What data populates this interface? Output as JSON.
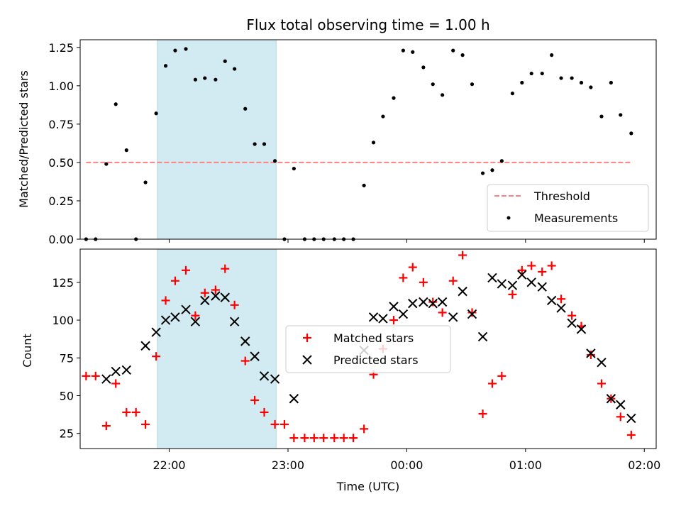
{
  "chart_data": [
    {
      "type": "scatter",
      "title": "Flux total observing time = 1.00 h",
      "ylabel": "Matched/Predicted stars",
      "xlabel": "",
      "x_unit": "hours relative to 00:00 UTC",
      "xlim": [
        -2.75,
        2.1
      ],
      "ylim": [
        0,
        1.3
      ],
      "yticks": [
        0.0,
        0.25,
        0.5,
        0.75,
        1.0,
        1.25
      ],
      "ytick_labels": [
        "0.00",
        "0.25",
        "0.50",
        "0.75",
        "1.00",
        "1.25"
      ],
      "shaded_interval": [
        -2.1,
        -1.1
      ],
      "shade_color": "#add8e6",
      "grid": false,
      "legend_position": "lower right",
      "threshold": {
        "name": "Threshold",
        "value": 0.5,
        "x_range": [
          -2.7,
          1.9
        ],
        "color": "#ff8080",
        "style": "dashed"
      },
      "series": [
        {
          "name": "Measurements",
          "marker": "dot",
          "color": "#000000",
          "points": [
            [
              -2.7,
              0.0
            ],
            [
              -2.62,
              0.0
            ],
            [
              -2.53,
              0.49
            ],
            [
              -2.45,
              0.88
            ],
            [
              -2.36,
              0.58
            ],
            [
              -2.28,
              0.0
            ],
            [
              -2.2,
              0.37
            ],
            [
              -2.11,
              0.82
            ],
            [
              -2.03,
              1.13
            ],
            [
              -1.95,
              1.23
            ],
            [
              -1.86,
              1.24
            ],
            [
              -1.78,
              1.04
            ],
            [
              -1.7,
              1.05
            ],
            [
              -1.61,
              1.04
            ],
            [
              -1.53,
              1.16
            ],
            [
              -1.45,
              1.11
            ],
            [
              -1.36,
              0.85
            ],
            [
              -1.28,
              0.62
            ],
            [
              -1.2,
              0.62
            ],
            [
              -1.11,
              0.51
            ],
            [
              -1.03,
              0.0
            ],
            [
              -0.95,
              0.46
            ],
            [
              -0.86,
              0.0
            ],
            [
              -0.78,
              0.0
            ],
            [
              -0.7,
              0.0
            ],
            [
              -0.61,
              0.0
            ],
            [
              -0.53,
              0.0
            ],
            [
              -0.45,
              0.0
            ],
            [
              -0.36,
              0.35
            ],
            [
              -0.28,
              0.63
            ],
            [
              -0.2,
              0.8
            ],
            [
              -0.11,
              0.92
            ],
            [
              -0.03,
              1.23
            ],
            [
              0.05,
              1.22
            ],
            [
              0.14,
              1.12
            ],
            [
              0.22,
              1.01
            ],
            [
              0.3,
              0.94
            ],
            [
              0.39,
              1.23
            ],
            [
              0.47,
              1.2
            ],
            [
              0.55,
              1.01
            ],
            [
              0.64,
              0.43
            ],
            [
              0.72,
              0.45
            ],
            [
              0.8,
              0.51
            ],
            [
              0.89,
              0.95
            ],
            [
              0.97,
              1.02
            ],
            [
              1.05,
              1.08
            ],
            [
              1.14,
              1.08
            ],
            [
              1.22,
              1.2
            ],
            [
              1.3,
              1.05
            ],
            [
              1.39,
              1.05
            ],
            [
              1.47,
              1.02
            ],
            [
              1.55,
              0.99
            ],
            [
              1.64,
              0.8
            ],
            [
              1.72,
              1.02
            ],
            [
              1.8,
              0.81
            ],
            [
              1.89,
              0.69
            ]
          ]
        }
      ]
    },
    {
      "type": "scatter",
      "title": "",
      "xlabel": "Time (UTC)",
      "ylabel": "Count",
      "x_unit": "hours relative to 00:00 UTC",
      "xlim": [
        -2.75,
        2.1
      ],
      "ylim": [
        15,
        147
      ],
      "xticks": [
        -2,
        -1,
        0,
        1,
        2
      ],
      "xtick_labels": [
        "22:00",
        "23:00",
        "00:00",
        "01:00",
        "02:00"
      ],
      "yticks": [
        25,
        50,
        75,
        100,
        125
      ],
      "ytick_labels": [
        "25",
        "50",
        "75",
        "100",
        "125"
      ],
      "shaded_interval": [
        -2.1,
        -1.1
      ],
      "shade_color": "#add8e6",
      "grid": false,
      "legend_position": "center",
      "series": [
        {
          "name": "Matched stars",
          "marker": "plus",
          "color": "#ff0000",
          "points": [
            [
              -2.7,
              63
            ],
            [
              -2.62,
              63
            ],
            [
              -2.53,
              30
            ],
            [
              -2.45,
              58
            ],
            [
              -2.36,
              39
            ],
            [
              -2.28,
              39
            ],
            [
              -2.2,
              31
            ],
            [
              -2.11,
              76
            ],
            [
              -2.03,
              113
            ],
            [
              -1.95,
              126
            ],
            [
              -1.86,
              133
            ],
            [
              -1.78,
              103
            ],
            [
              -1.7,
              118
            ],
            [
              -1.61,
              120
            ],
            [
              -1.53,
              134
            ],
            [
              -1.45,
              110
            ],
            [
              -1.36,
              73
            ],
            [
              -1.28,
              47
            ],
            [
              -1.2,
              39
            ],
            [
              -1.11,
              31
            ],
            [
              -1.03,
              31
            ],
            [
              -0.95,
              22
            ],
            [
              -0.86,
              22
            ],
            [
              -0.78,
              22
            ],
            [
              -0.7,
              22
            ],
            [
              -0.61,
              22
            ],
            [
              -0.53,
              22
            ],
            [
              -0.45,
              22
            ],
            [
              -0.36,
              28
            ],
            [
              -0.28,
              64
            ],
            [
              -0.2,
              81
            ],
            [
              -0.11,
              100
            ],
            [
              -0.03,
              128
            ],
            [
              0.05,
              135
            ],
            [
              0.14,
              125
            ],
            [
              0.22,
              112
            ],
            [
              0.3,
              105
            ],
            [
              0.39,
              126
            ],
            [
              0.47,
              143
            ],
            [
              0.55,
              105
            ],
            [
              0.64,
              38
            ],
            [
              0.72,
              58
            ],
            [
              0.8,
              63
            ],
            [
              0.89,
              117
            ],
            [
              0.97,
              133
            ],
            [
              1.05,
              136
            ],
            [
              1.14,
              132
            ],
            [
              1.22,
              136
            ],
            [
              1.3,
              114
            ],
            [
              1.39,
              103
            ],
            [
              1.47,
              96
            ],
            [
              1.55,
              77
            ],
            [
              1.64,
              58
            ],
            [
              1.72,
              48
            ],
            [
              1.8,
              36
            ],
            [
              1.89,
              24
            ]
          ]
        },
        {
          "name": "Predicted stars",
          "marker": "x",
          "color": "#000000",
          "points": [
            [
              -2.53,
              61
            ],
            [
              -2.45,
              66
            ],
            [
              -2.36,
              67
            ],
            [
              -2.2,
              83
            ],
            [
              -2.11,
              92
            ],
            [
              -2.03,
              100
            ],
            [
              -1.95,
              102
            ],
            [
              -1.86,
              107
            ],
            [
              -1.78,
              99
            ],
            [
              -1.7,
              113
            ],
            [
              -1.61,
              116
            ],
            [
              -1.53,
              115
            ],
            [
              -1.45,
              99
            ],
            [
              -1.36,
              86
            ],
            [
              -1.28,
              76
            ],
            [
              -1.2,
              63
            ],
            [
              -1.11,
              61
            ],
            [
              -0.95,
              48
            ],
            [
              -0.36,
              80
            ],
            [
              -0.28,
              102
            ],
            [
              -0.2,
              101
            ],
            [
              -0.11,
              109
            ],
            [
              -0.03,
              104
            ],
            [
              0.05,
              111
            ],
            [
              0.14,
              112
            ],
            [
              0.22,
              111
            ],
            [
              0.3,
              112
            ],
            [
              0.39,
              102
            ],
            [
              0.47,
              119
            ],
            [
              0.55,
              104
            ],
            [
              0.64,
              89
            ],
            [
              0.72,
              128
            ],
            [
              0.8,
              124
            ],
            [
              0.89,
              123
            ],
            [
              0.97,
              130
            ],
            [
              1.05,
              125
            ],
            [
              1.14,
              122
            ],
            [
              1.22,
              113
            ],
            [
              1.3,
              108
            ],
            [
              1.39,
              98
            ],
            [
              1.47,
              94
            ],
            [
              1.55,
              78
            ],
            [
              1.64,
              72
            ],
            [
              1.72,
              48
            ],
            [
              1.8,
              44
            ],
            [
              1.89,
              35
            ]
          ]
        }
      ]
    }
  ]
}
